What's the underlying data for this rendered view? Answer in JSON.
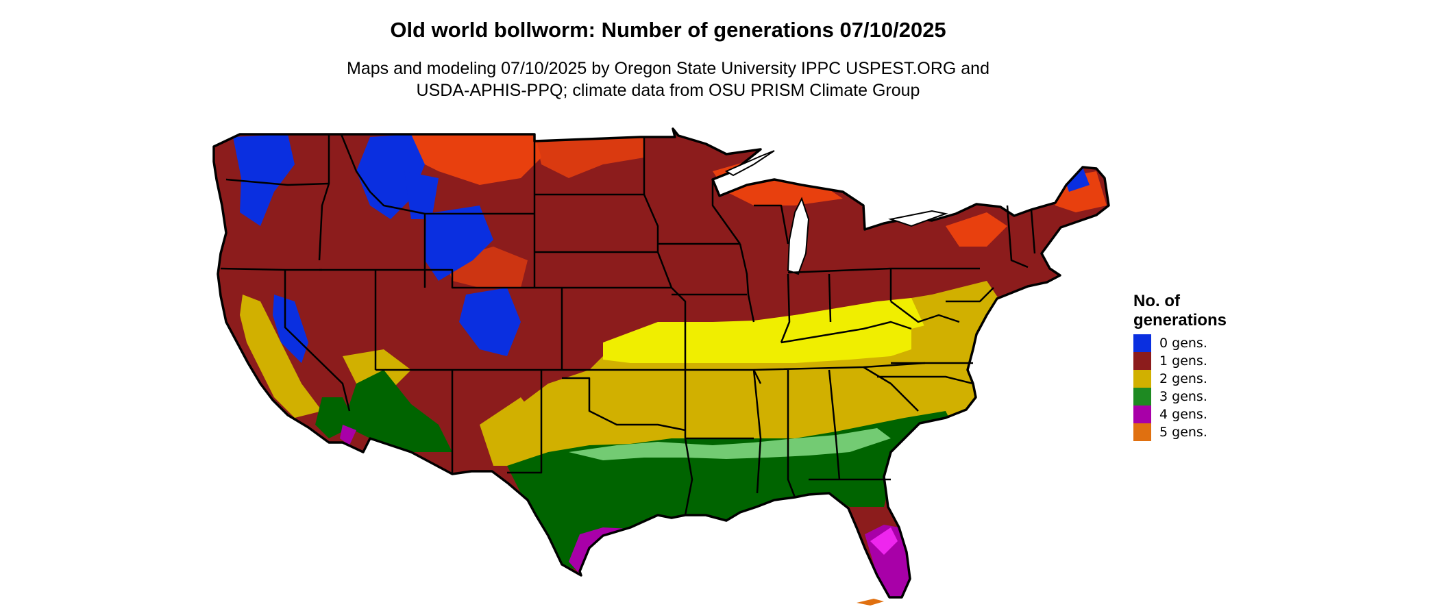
{
  "title": "Old world bollworm: Number of generations 07/10/2025",
  "subtitle": {
    "line1": "Maps and modeling 07/10/2025 by Oregon State University IPPC USPEST.ORG and",
    "line2": "USDA-APHIS-PPQ; climate data from OSU PRISM Climate Group"
  },
  "legend": {
    "title_line1": "No. of",
    "title_line2": "generations",
    "items": [
      {
        "label": "0 gens.",
        "color": "#0a2fe0"
      },
      {
        "label": "1 gens.",
        "color": "#8c1c1c"
      },
      {
        "label": "2 gens.",
        "color": "#d1b000"
      },
      {
        "label": "3 gens.",
        "color": "#1e8a22"
      },
      {
        "label": "4 gens.",
        "color": "#a800a8"
      },
      {
        "label": "5 gens.",
        "color": "#e07010"
      }
    ]
  },
  "map_colors": {
    "gen0": "#0a2fe0",
    "gen1_dark": "#8c1c1c",
    "gen1_bright": "#e8400e",
    "gen2": "#d1b000",
    "gen2_bright": "#f0ee00",
    "gen3": "#006400",
    "gen3_light": "#7fd67f",
    "gen4": "#a800a8",
    "gen4_bright": "#ff30ff",
    "gen5": "#e07010"
  }
}
